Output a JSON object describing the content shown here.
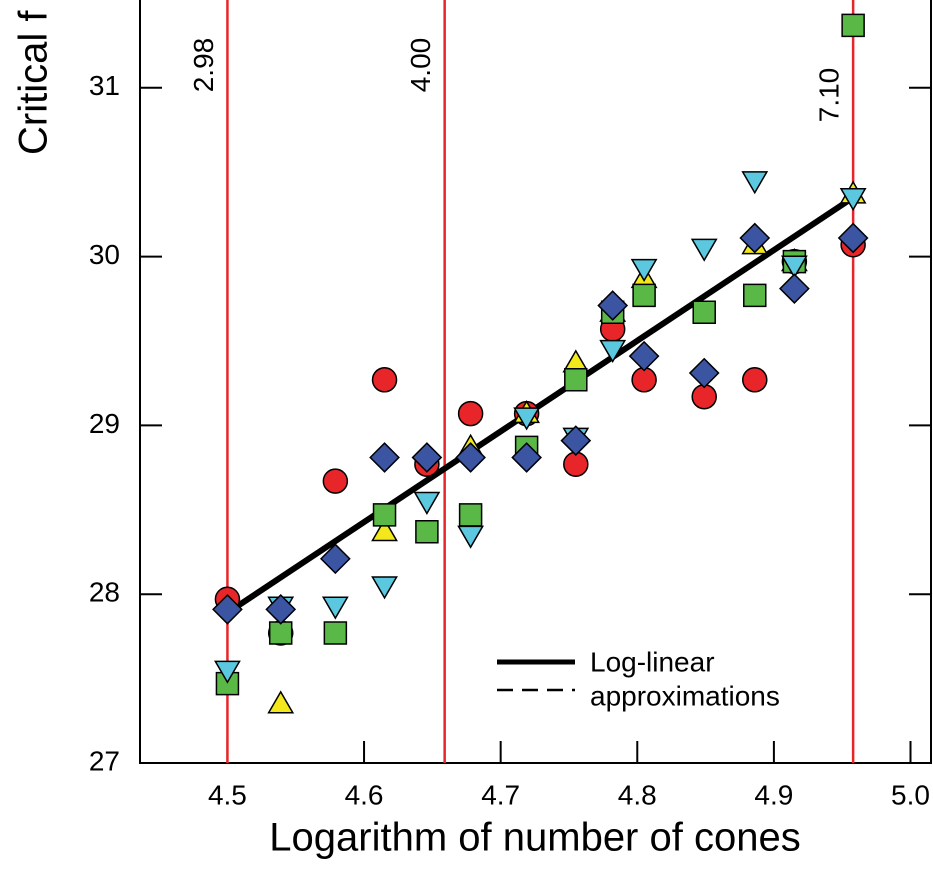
{
  "chart_data": {
    "type": "scatter",
    "y_label": "Critical f",
    "x_label": "Logarithm of number of cones",
    "xlim": [
      4.436,
      5.015
    ],
    "ylim": [
      27,
      31.52
    ],
    "xticks": [
      4.5,
      4.6,
      4.7,
      4.8,
      4.9,
      {
        "value": 5,
        "label": "5.0"
      }
    ],
    "yticks": [
      27,
      28,
      29,
      30,
      31
    ],
    "x": [
      4.5,
      4.539,
      4.579,
      4.615,
      4.646,
      4.678,
      4.719,
      4.755,
      4.782,
      4.805,
      4.849,
      4.886,
      4.915,
      4.958
    ],
    "series": [
      {
        "marker": "circle",
        "color": "#e8262a",
        "values": [
          27.97,
          27.77,
          28.67,
          29.27,
          28.77,
          29.07,
          29.07,
          28.77,
          29.57,
          29.27,
          29.17,
          29.27,
          29.97,
          30.07
        ]
      },
      {
        "marker": "triangle-up",
        "color": "#f2e81c",
        "values": [
          null,
          27.35,
          null,
          28.37,
          null,
          28.87,
          29.07,
          29.37,
          29.67,
          29.87,
          null,
          30.07,
          29.97,
          30.37
        ]
      },
      {
        "marker": "square",
        "color": "#5ab946",
        "values": [
          27.47,
          27.77,
          27.77,
          28.47,
          28.37,
          28.47,
          28.87,
          29.27,
          29.67,
          29.77,
          29.67,
          29.77,
          29.97,
          31.37
        ]
      },
      {
        "marker": "triangle-down",
        "color": "#5bc8e0",
        "values": [
          27.55,
          27.93,
          27.93,
          28.05,
          28.55,
          28.35,
          29.05,
          28.93,
          29.45,
          29.93,
          30.05,
          30.45,
          29.95,
          30.35
        ]
      },
      {
        "marker": "diamond",
        "color": "#3b55a3",
        "values": [
          27.91,
          27.91,
          28.21,
          28.81,
          28.81,
          28.81,
          28.81,
          28.91,
          29.71,
          29.41,
          29.31,
          30.11,
          29.81,
          30.11
        ]
      }
    ],
    "fit": {
      "color": "#000000",
      "x": [
        4.5,
        4.958
      ],
      "values": [
        27.89,
        30.35
      ]
    },
    "annotations": [
      {
        "x": 4.5,
        "label": "2.98",
        "color": "#e8262a"
      },
      {
        "x": 4.659,
        "label": "4.00",
        "color": "#e8262a"
      },
      {
        "x": 4.958,
        "label": "7.10",
        "color": "#e8262a"
      }
    ],
    "legend": [
      "Log-linear",
      "approximations"
    ]
  }
}
